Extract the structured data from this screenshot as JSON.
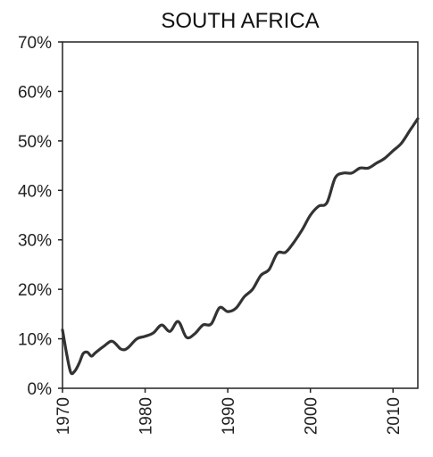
{
  "chart_data": {
    "type": "line",
    "title": "SOUTH AFRICA",
    "xlabel": "",
    "ylabel": "",
    "xlim": [
      1970,
      2013
    ],
    "ylim": [
      0,
      70
    ],
    "y_ticks": [
      "0%",
      "10%",
      "20%",
      "30%",
      "40%",
      "50%",
      "60%",
      "70%"
    ],
    "y_tick_values": [
      0,
      10,
      20,
      30,
      40,
      50,
      60,
      70
    ],
    "x_ticks": [
      "1970",
      "1980",
      "1990",
      "2000",
      "2010"
    ],
    "x_tick_values": [
      1970,
      1980,
      1990,
      2000,
      2010
    ],
    "grid": false,
    "line_color": "#333333",
    "series": [
      {
        "x": [
          1970,
          1970.5,
          1971,
          1971.5,
          1972,
          1972.5,
          1973,
          1973.5,
          1974,
          1975,
          1976,
          1977,
          1977.5,
          1978,
          1979,
          1980,
          1981,
          1982,
          1983,
          1984,
          1985,
          1986,
          1987,
          1988,
          1989,
          1990,
          1991,
          1992,
          1993,
          1994,
          1995,
          1996,
          1997,
          1998,
          1999,
          2000,
          2001,
          2002,
          2003,
          2004,
          2005,
          2006,
          2007,
          2008,
          2009,
          2010,
          2011,
          2012,
          2013
        ],
        "y": [
          11.8,
          7.0,
          3.2,
          3.5,
          5.0,
          7.0,
          7.3,
          6.5,
          7.2,
          8.5,
          9.5,
          8.0,
          7.8,
          8.3,
          10.0,
          10.5,
          11.2,
          12.8,
          11.5,
          13.5,
          10.3,
          11.0,
          12.8,
          13.0,
          16.3,
          15.5,
          16.2,
          18.5,
          20.0,
          22.8,
          24.0,
          27.3,
          27.5,
          29.5,
          32.0,
          35.0,
          36.8,
          37.5,
          42.5,
          43.5,
          43.5,
          44.5,
          44.5,
          45.5,
          46.5,
          48.0,
          49.5,
          52.0,
          54.5
        ]
      }
    ]
  }
}
